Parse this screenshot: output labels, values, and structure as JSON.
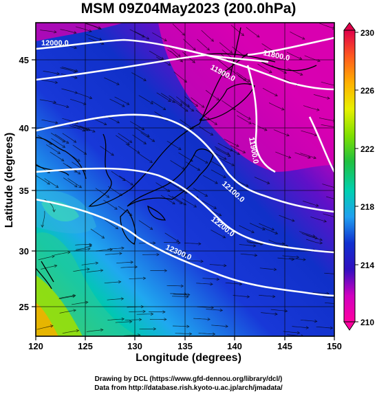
{
  "title": "MSM 09Z04May2023 (200.0hPa)",
  "axes": {
    "xlabel": "Longitude (degrees)",
    "ylabel": "Latitude  (degrees)",
    "x_ticks": [
      "120",
      "125",
      "130",
      "135",
      "140",
      "145",
      "150"
    ],
    "y_ticks": [
      "45",
      "40",
      "35",
      "30",
      "25"
    ]
  },
  "colorbar": {
    "labels": [
      "230",
      "226",
      "222",
      "218",
      "214",
      "210"
    ],
    "colors": [
      "#e0004a",
      "#ff5a1e",
      "#ffb000",
      "#e8f000",
      "#80e000",
      "#20c040",
      "#00d0b0",
      "#20a0f0",
      "#1030d0",
      "#5010c0",
      "#d000c0",
      "#ff00a0"
    ]
  },
  "contour_labels": {
    "c12000": "12000.0",
    "c11900_a": "11900.0",
    "c11800": "11800.0",
    "c11900_b": "11900.0",
    "c12100": "12100.0",
    "c12200": "12200.0",
    "c12300": "12300.0"
  },
  "credits": {
    "line1": "Drawing by DCL (https://www.gfd-dennou.org/library/dcl/)",
    "line2": "Data from http://database.rish.kyoto-u.ac.jp/arch/jmadata/"
  }
}
